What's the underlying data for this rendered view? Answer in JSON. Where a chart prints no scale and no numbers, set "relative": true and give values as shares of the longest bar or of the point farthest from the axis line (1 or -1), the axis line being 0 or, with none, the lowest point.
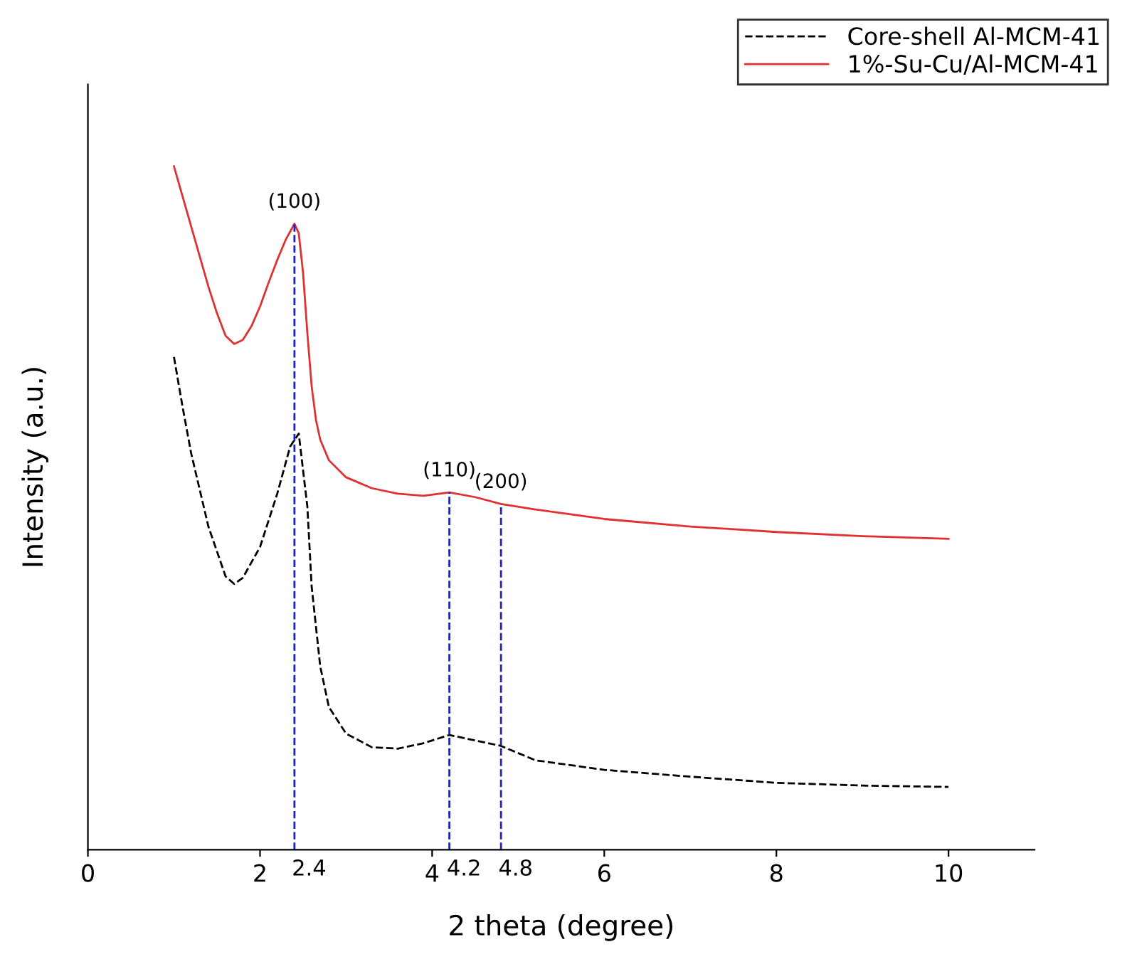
{
  "chart_data": {
    "type": "line",
    "relative": true,
    "xlabel": "2 theta (degree)",
    "ylabel": "Intensity (a.u.)",
    "xlim": [
      0,
      11
    ],
    "xticks": [
      0,
      2,
      4,
      6,
      8,
      10
    ],
    "grid": false,
    "legend": "top right",
    "marker": "none",
    "series": [
      {
        "name": "Core-shell Al-MCM-41",
        "color": "#000000",
        "line_style": "dashed",
        "x": [
          1.0,
          1.1,
          1.2,
          1.4,
          1.6,
          1.7,
          1.8,
          2.0,
          2.2,
          2.35,
          2.45,
          2.55,
          2.6,
          2.7,
          2.8,
          3.0,
          3.3,
          3.6,
          3.9,
          4.2,
          4.5,
          4.8,
          5.2,
          6,
          7,
          8,
          9,
          10
        ],
        "values": [
          0.721,
          0.648,
          0.58,
          0.473,
          0.4,
          0.389,
          0.398,
          0.443,
          0.521,
          0.59,
          0.609,
          0.502,
          0.385,
          0.268,
          0.209,
          0.17,
          0.15,
          0.148,
          0.156,
          0.168,
          0.16,
          0.152,
          0.131,
          0.117,
          0.107,
          0.098,
          0.094,
          0.092
        ]
      },
      {
        "name": "1%-Su-Cu/Al-MCM-41",
        "color": "#e03030",
        "line_style": "solid",
        "x": [
          1.0,
          1.2,
          1.4,
          1.5,
          1.6,
          1.7,
          1.8,
          1.9,
          2.0,
          2.1,
          2.2,
          2.3,
          2.4,
          2.45,
          2.5,
          2.55,
          2.6,
          2.65,
          2.7,
          2.8,
          3.0,
          3.3,
          3.6,
          3.9,
          4.2,
          4.5,
          4.8,
          5.2,
          6,
          7,
          8,
          9,
          10
        ],
        "values": [
          1.0,
          0.912,
          0.824,
          0.785,
          0.752,
          0.74,
          0.746,
          0.766,
          0.795,
          0.83,
          0.863,
          0.893,
          0.916,
          0.902,
          0.844,
          0.756,
          0.678,
          0.629,
          0.6,
          0.57,
          0.545,
          0.529,
          0.521,
          0.518,
          0.523,
          0.516,
          0.506,
          0.498,
          0.484,
          0.473,
          0.465,
          0.459,
          0.455
        ]
      }
    ],
    "ref_lines": [
      {
        "axis": "x",
        "value": 2.4,
        "label": "2.4",
        "color": "#2020c0",
        "line_style": "dashed"
      },
      {
        "axis": "x",
        "value": 4.2,
        "label": "4.2",
        "color": "#2020c0",
        "line_style": "dashed"
      },
      {
        "axis": "x",
        "value": 4.8,
        "label": "4.8",
        "color": "#2020c0",
        "line_style": "dashed"
      }
    ],
    "annotations": [
      {
        "text": "(100)",
        "x": 2.4,
        "y": 0.916
      },
      {
        "text": "(110)",
        "x": 4.2,
        "y": 0.523
      },
      {
        "text": "(200)",
        "x": 4.8,
        "y": 0.506
      }
    ]
  }
}
